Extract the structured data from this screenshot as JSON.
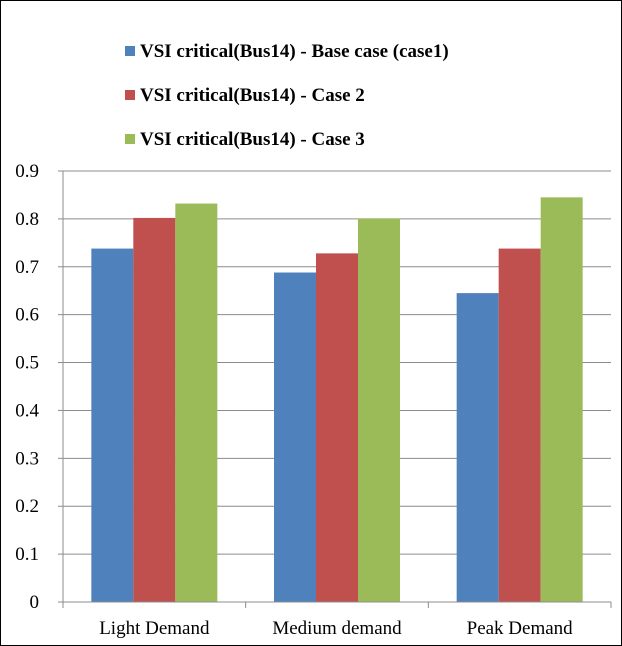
{
  "chart_data": {
    "type": "bar",
    "categories": [
      "Light Demand",
      "Medium demand",
      "Peak Demand"
    ],
    "series": [
      {
        "name": "VSI critical(Bus14) - Base case (case1)",
        "values": [
          0.738,
          0.688,
          0.645
        ],
        "color": "#4F81BD"
      },
      {
        "name": "VSI critical(Bus14) - Case 2",
        "values": [
          0.802,
          0.728,
          0.738
        ],
        "color": "#C0504D"
      },
      {
        "name": "VSI critical(Bus14) - Case 3",
        "values": [
          0.832,
          0.801,
          0.845
        ],
        "color": "#9BBB59"
      }
    ],
    "y_ticks": [
      "0",
      "0.1",
      "0.2",
      "0.3",
      "0.4",
      "0.5",
      "0.6",
      "0.7",
      "0.8",
      "0.9"
    ],
    "ylim": [
      0,
      0.9
    ],
    "grid": true,
    "legend_position": "top-center",
    "title": "",
    "xlabel": "",
    "ylabel": ""
  }
}
